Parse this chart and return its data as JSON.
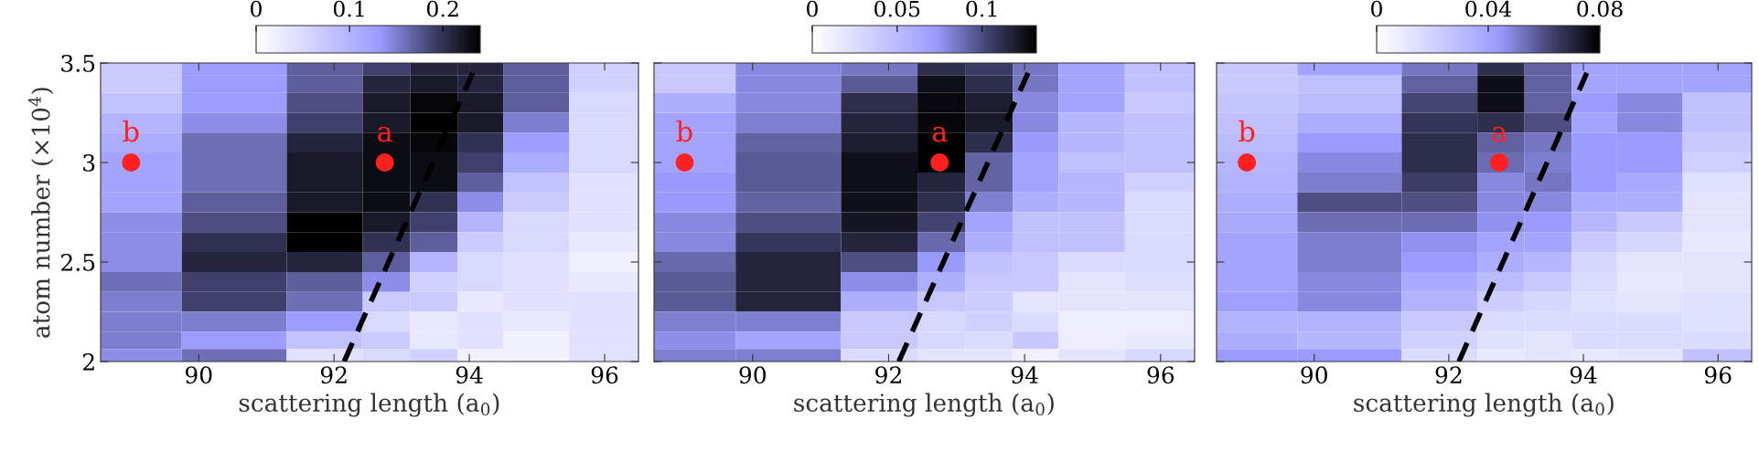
{
  "chart_data": [
    {
      "type": "heatmap",
      "xlabel": "scattering length (a$_{0}$)",
      "ylabel": "atom number (×10$^{4}$)",
      "x": [
        89,
        90.5,
        92.1,
        92.75,
        93.5,
        94.15,
        94.85,
        96.1
      ],
      "y": [
        3.475,
        3.4,
        3.3,
        3.2,
        3.1,
        3.0,
        2.9,
        2.8,
        2.7,
        2.6,
        2.5,
        2.4,
        2.3,
        2.2,
        2.1,
        2.025
      ],
      "xlim": [
        88.55,
        96.5
      ],
      "xticks": [
        90,
        92,
        94,
        96
      ],
      "ylim": [
        2,
        3.5
      ],
      "yticks": [
        2,
        2.5,
        3,
        3.5
      ],
      "clim": [
        0,
        0.24
      ],
      "cticks": [
        0,
        0.1,
        0.2
      ],
      "cells": [
        [
          0.07,
          0.13,
          0.17,
          0.19,
          0.21,
          0.21,
          0.17,
          0.06
        ],
        [
          0.07,
          0.13,
          0.17,
          0.21,
          0.22,
          0.21,
          0.17,
          0.06
        ],
        [
          0.08,
          0.13,
          0.18,
          0.22,
          0.235,
          0.22,
          0.17,
          0.05
        ],
        [
          0.1,
          0.14,
          0.19,
          0.22,
          0.24,
          0.22,
          0.15,
          0.05
        ],
        [
          0.11,
          0.16,
          0.21,
          0.23,
          0.235,
          0.2,
          0.13,
          0.05
        ],
        [
          0.12,
          0.16,
          0.22,
          0.23,
          0.23,
          0.19,
          0.11,
          0.05
        ],
        [
          0.12,
          0.16,
          0.22,
          0.23,
          0.23,
          0.17,
          0.08,
          0.04
        ],
        [
          0.12,
          0.17,
          0.22,
          0.23,
          0.2,
          0.14,
          0.07,
          0.04
        ],
        [
          0.14,
          0.18,
          0.24,
          0.22,
          0.19,
          0.1,
          0.05,
          0.04
        ],
        [
          0.14,
          0.2,
          0.24,
          0.2,
          0.17,
          0.07,
          0.05,
          0.03
        ],
        [
          0.14,
          0.21,
          0.21,
          0.17,
          0.1,
          0.05,
          0.04,
          0.02
        ],
        [
          0.16,
          0.19,
          0.17,
          0.14,
          0.06,
          0.05,
          0.04,
          0.03
        ],
        [
          0.15,
          0.19,
          0.16,
          0.07,
          0.07,
          0.03,
          0.04,
          0.04
        ],
        [
          0.15,
          0.15,
          0.13,
          0.05,
          0.03,
          0.04,
          0.03,
          0.04
        ],
        [
          0.15,
          0.13,
          0.08,
          0.07,
          0.03,
          0.04,
          0.02,
          0.04
        ],
        [
          0.14,
          0.16,
          0.04,
          0.05,
          0.06,
          0.02,
          0.02,
          0.04
        ]
      ],
      "series": [
        {
          "type": "scatter",
          "color": "#ff2020",
          "x": [
            89,
            92.75
          ],
          "values": [
            3.0,
            3.0
          ],
          "marker": "circle",
          "value_labels": [
            "b",
            "a"
          ]
        },
        {
          "type": "line",
          "color": "#000000",
          "x": [
            92.15,
            94.05
          ],
          "values": [
            2.0,
            3.45
          ],
          "line_style": "dashed"
        }
      ]
    },
    {
      "type": "heatmap",
      "xlabel": "scattering length (a$_{0}$)",
      "tick_labels": "x",
      "x": [
        89,
        90.5,
        92.1,
        92.75,
        93.5,
        94.15,
        94.85,
        96.1
      ],
      "y": [
        3.475,
        3.4,
        3.3,
        3.2,
        3.1,
        3.0,
        2.9,
        2.8,
        2.7,
        2.6,
        2.5,
        2.4,
        2.3,
        2.2,
        2.1,
        2.025
      ],
      "xlim": [
        88.55,
        96.5
      ],
      "xticks": [
        90,
        92,
        94,
        96
      ],
      "ylim": [
        2,
        3.5
      ],
      "yticks": [
        2,
        2.5,
        3,
        3.5
      ],
      "clim": [
        0,
        0.132
      ],
      "cticks": [
        0,
        0.05,
        0.1
      ],
      "cells": [
        [
          0.04,
          0.079,
          0.086,
          0.112,
          0.106,
          0.086,
          0.066,
          0.046
        ],
        [
          0.04,
          0.079,
          0.095,
          0.125,
          0.112,
          0.086,
          0.066,
          0.046
        ],
        [
          0.059,
          0.079,
          0.112,
          0.128,
          0.119,
          0.079,
          0.066,
          0.04
        ],
        [
          0.066,
          0.082,
          0.116,
          0.129,
          0.121,
          0.079,
          0.053,
          0.046
        ],
        [
          0.066,
          0.092,
          0.119,
          0.132,
          0.112,
          0.073,
          0.053,
          0.046
        ],
        [
          0.066,
          0.095,
          0.125,
          0.132,
          0.092,
          0.066,
          0.046,
          0.046
        ],
        [
          0.073,
          0.095,
          0.125,
          0.116,
          0.092,
          0.066,
          0.053,
          0.033
        ],
        [
          0.073,
          0.092,
          0.125,
          0.112,
          0.082,
          0.059,
          0.053,
          0.026
        ],
        [
          0.079,
          0.099,
          0.123,
          0.103,
          0.066,
          0.046,
          0.046,
          0.026
        ],
        [
          0.079,
          0.108,
          0.116,
          0.09,
          0.059,
          0.046,
          0.046,
          0.026
        ],
        [
          0.09,
          0.116,
          0.099,
          0.073,
          0.046,
          0.04,
          0.026,
          0.026
        ],
        [
          0.095,
          0.116,
          0.077,
          0.059,
          0.04,
          0.04,
          0.02,
          0.024
        ],
        [
          0.095,
          0.116,
          0.059,
          0.04,
          0.037,
          0.02,
          0.02,
          0.02
        ],
        [
          0.082,
          0.082,
          0.04,
          0.029,
          0.033,
          0.026,
          0.013,
          0.013
        ],
        [
          0.077,
          0.066,
          0.04,
          0.029,
          0.026,
          0.04,
          0.013,
          0.016
        ],
        [
          0.082,
          0.082,
          0.026,
          0.02,
          0.02,
          0.011,
          0.02,
          0.029
        ]
      ],
      "series": [
        {
          "type": "scatter",
          "color": "#ff2020",
          "x": [
            89,
            92.75
          ],
          "values": [
            3.0,
            3.0
          ],
          "marker": "circle",
          "value_labels": [
            "b",
            "a"
          ]
        },
        {
          "type": "line",
          "color": "#000000",
          "x": [
            92.15,
            94.05
          ],
          "values": [
            2.0,
            3.45
          ],
          "line_style": "dashed"
        }
      ]
    },
    {
      "type": "heatmap",
      "xlabel": "scattering length (a$_{0}$)",
      "tick_labels": "x",
      "x": [
        89,
        90.5,
        92.1,
        92.75,
        93.5,
        94.15,
        94.85,
        96.1
      ],
      "y": [
        3.475,
        3.4,
        3.3,
        3.2,
        3.1,
        3.0,
        2.9,
        2.8,
        2.7,
        2.6,
        2.5,
        2.4,
        2.3,
        2.2,
        2.1,
        2.025
      ],
      "xlim": [
        88.55,
        96.5
      ],
      "xticks": [
        90,
        92,
        94,
        96
      ],
      "ylim": [
        2,
        3.5
      ],
      "yticks": [
        2,
        2.5,
        3,
        3.5
      ],
      "clim": [
        0,
        0.08
      ],
      "cticks": [
        0,
        0.04,
        0.08
      ],
      "cells": [
        [
          0.024,
          0.04,
          0.052,
          0.068,
          0.056,
          0.04,
          0.04,
          0.04
        ],
        [
          0.024,
          0.028,
          0.056,
          0.076,
          0.056,
          0.04,
          0.04,
          0.04
        ],
        [
          0.026,
          0.03,
          0.062,
          0.076,
          0.056,
          0.044,
          0.048,
          0.028
        ],
        [
          0.028,
          0.036,
          0.066,
          0.068,
          0.06,
          0.04,
          0.048,
          0.028
        ],
        [
          0.03,
          0.044,
          0.068,
          0.056,
          0.052,
          0.044,
          0.044,
          0.024
        ],
        [
          0.032,
          0.048,
          0.068,
          0.054,
          0.05,
          0.044,
          0.044,
          0.02
        ],
        [
          0.034,
          0.05,
          0.064,
          0.048,
          0.052,
          0.044,
          0.038,
          0.014
        ],
        [
          0.036,
          0.06,
          0.06,
          0.048,
          0.048,
          0.036,
          0.036,
          0.012
        ],
        [
          0.038,
          0.054,
          0.054,
          0.046,
          0.044,
          0.032,
          0.024,
          0.012
        ],
        [
          0.04,
          0.05,
          0.046,
          0.04,
          0.04,
          0.024,
          0.018,
          0.01
        ],
        [
          0.04,
          0.05,
          0.044,
          0.036,
          0.032,
          0.018,
          0.012,
          0.012
        ],
        [
          0.04,
          0.048,
          0.038,
          0.03,
          0.024,
          0.016,
          0.01,
          0.012
        ],
        [
          0.042,
          0.048,
          0.034,
          0.022,
          0.018,
          0.014,
          0.012,
          0.014
        ],
        [
          0.034,
          0.034,
          0.024,
          0.016,
          0.016,
          0.016,
          0.016,
          0.014
        ],
        [
          0.036,
          0.032,
          0.02,
          0.014,
          0.012,
          0.016,
          0.016,
          0.016
        ],
        [
          0.044,
          0.044,
          0.016,
          0.01,
          0.012,
          0.01,
          0.012,
          0.028
        ]
      ],
      "series": [
        {
          "type": "scatter",
          "color": "#ff2020",
          "x": [
            89,
            92.75
          ],
          "values": [
            3.0,
            3.0
          ],
          "marker": "circle",
          "value_labels": [
            "b",
            "a"
          ]
        },
        {
          "type": "line",
          "color": "#000000",
          "x": [
            92.15,
            94.05
          ],
          "values": [
            2.0,
            3.45
          ],
          "line_style": "dashed"
        }
      ]
    }
  ]
}
